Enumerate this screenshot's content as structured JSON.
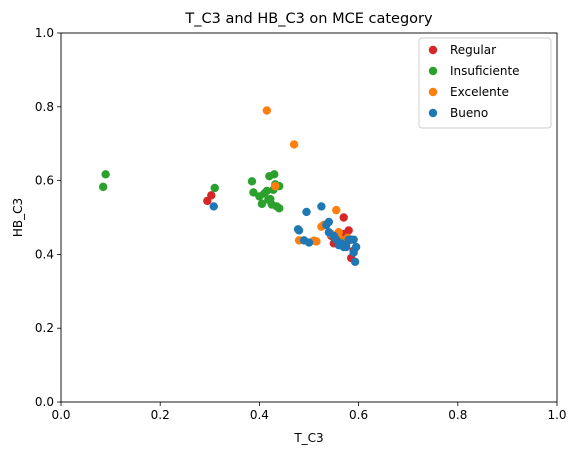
{
  "chart_data": {
    "type": "scatter",
    "title": "T_C3 and HB_C3 on MCE category",
    "xlabel": "T_C3",
    "ylabel": "HB_C3",
    "xlim": [
      0,
      1
    ],
    "ylim": [
      0,
      1
    ],
    "xticks": [
      "0.0",
      "0.2",
      "0.4",
      "0.6",
      "0.8",
      "1.0"
    ],
    "yticks": [
      "0.0",
      "0.2",
      "0.4",
      "0.6",
      "0.8",
      "1.0"
    ],
    "grid": false,
    "legend_position": "top-right",
    "series": [
      {
        "name": "Regular",
        "color": "#d62728",
        "points": [
          [
            0.295,
            0.545
          ],
          [
            0.303,
            0.56
          ],
          [
            0.55,
            0.43
          ],
          [
            0.56,
            0.44
          ],
          [
            0.57,
            0.5
          ],
          [
            0.58,
            0.465
          ],
          [
            0.585,
            0.39
          ],
          [
            0.59,
            0.41
          ],
          [
            0.545,
            0.45
          ],
          [
            0.575,
            0.43
          ],
          [
            0.57,
            0.455
          ]
        ]
      },
      {
        "name": "Insuficiente",
        "color": "#2ca02c",
        "points": [
          [
            0.085,
            0.583
          ],
          [
            0.09,
            0.617
          ],
          [
            0.31,
            0.58
          ],
          [
            0.385,
            0.598
          ],
          [
            0.388,
            0.568
          ],
          [
            0.4,
            0.557
          ],
          [
            0.405,
            0.537
          ],
          [
            0.41,
            0.565
          ],
          [
            0.415,
            0.572
          ],
          [
            0.42,
            0.612
          ],
          [
            0.422,
            0.55
          ],
          [
            0.425,
            0.535
          ],
          [
            0.428,
            0.575
          ],
          [
            0.43,
            0.617
          ],
          [
            0.432,
            0.59
          ],
          [
            0.435,
            0.53
          ],
          [
            0.44,
            0.525
          ],
          [
            0.44,
            0.585
          ],
          [
            0.418,
            0.548
          ]
        ]
      },
      {
        "name": "Excelente",
        "color": "#ff7f0e",
        "points": [
          [
            0.415,
            0.79
          ],
          [
            0.47,
            0.698
          ],
          [
            0.432,
            0.585
          ],
          [
            0.48,
            0.438
          ],
          [
            0.51,
            0.437
          ],
          [
            0.515,
            0.435
          ],
          [
            0.525,
            0.475
          ],
          [
            0.53,
            0.48
          ],
          [
            0.555,
            0.52
          ],
          [
            0.56,
            0.46
          ],
          [
            0.545,
            0.455
          ],
          [
            0.565,
            0.44
          ],
          [
            0.578,
            0.445
          ]
        ]
      },
      {
        "name": "Bueno",
        "color": "#1f77b4",
        "points": [
          [
            0.308,
            0.53
          ],
          [
            0.478,
            0.468
          ],
          [
            0.48,
            0.465
          ],
          [
            0.49,
            0.438
          ],
          [
            0.495,
            0.515
          ],
          [
            0.5,
            0.432
          ],
          [
            0.525,
            0.53
          ],
          [
            0.535,
            0.48
          ],
          [
            0.54,
            0.488
          ],
          [
            0.54,
            0.46
          ],
          [
            0.55,
            0.45
          ],
          [
            0.555,
            0.44
          ],
          [
            0.56,
            0.425
          ],
          [
            0.565,
            0.43
          ],
          [
            0.57,
            0.42
          ],
          [
            0.575,
            0.42
          ],
          [
            0.58,
            0.44
          ],
          [
            0.585,
            0.44
          ],
          [
            0.59,
            0.405
          ],
          [
            0.59,
            0.44
          ],
          [
            0.593,
            0.38
          ],
          [
            0.595,
            0.42
          ]
        ]
      }
    ]
  }
}
